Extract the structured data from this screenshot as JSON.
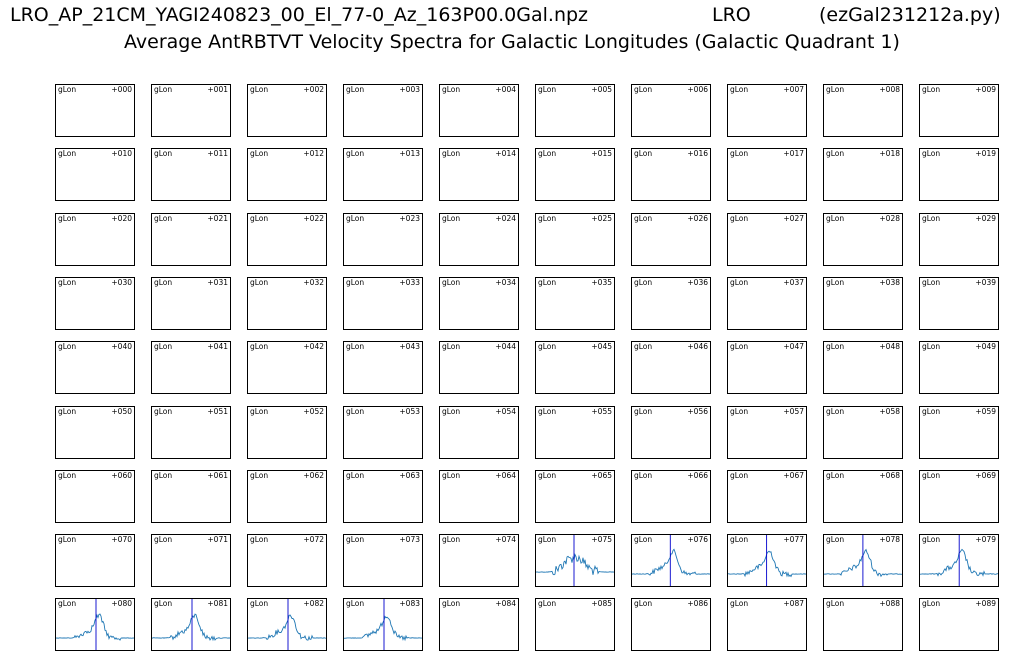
{
  "title": {
    "file": "LRO_AP_21CM_YAGI240823_00_El_77-0_Az_163P00.0Gal.npz",
    "site": "LRO",
    "program": "(ezGal231212a.py)",
    "subtitle": "Average AntRBTVT Velocity Spectra for Galactic Longitudes (Galactic Quadrant 1)"
  },
  "colors": {
    "spectrum": "#1f77b4",
    "marker": "#0000cc",
    "frame": "#000000"
  },
  "chart_data": {
    "type": "line",
    "layout": "small-multiples grid, 9 rows x 10 columns",
    "panel_label_left": "gLon",
    "panels": [
      "+000",
      "+001",
      "+002",
      "+003",
      "+004",
      "+005",
      "+006",
      "+007",
      "+008",
      "+009",
      "+010",
      "+011",
      "+012",
      "+013",
      "+014",
      "+015",
      "+016",
      "+017",
      "+018",
      "+019",
      "+020",
      "+021",
      "+022",
      "+023",
      "+024",
      "+025",
      "+026",
      "+027",
      "+028",
      "+029",
      "+030",
      "+031",
      "+032",
      "+033",
      "+034",
      "+035",
      "+036",
      "+037",
      "+038",
      "+039",
      "+040",
      "+041",
      "+042",
      "+043",
      "+044",
      "+045",
      "+046",
      "+047",
      "+048",
      "+049",
      "+050",
      "+051",
      "+052",
      "+053",
      "+054",
      "+055",
      "+056",
      "+057",
      "+058",
      "+059",
      "+060",
      "+061",
      "+062",
      "+063",
      "+064",
      "+065",
      "+066",
      "+067",
      "+068",
      "+069",
      "+070",
      "+071",
      "+072",
      "+073",
      "+074",
      "+075",
      "+076",
      "+077",
      "+078",
      "+079",
      "+080",
      "+081",
      "+082",
      "+083",
      "+084",
      "+085",
      "+086",
      "+087",
      "+088",
      "+089"
    ],
    "panels_with_spectra": [
      "+075",
      "+076",
      "+077",
      "+078",
      "+079",
      "+080",
      "+081",
      "+082",
      "+083"
    ],
    "marker_line": "vertical line at zero velocity in panels with spectra",
    "axes_ticks": "none"
  }
}
